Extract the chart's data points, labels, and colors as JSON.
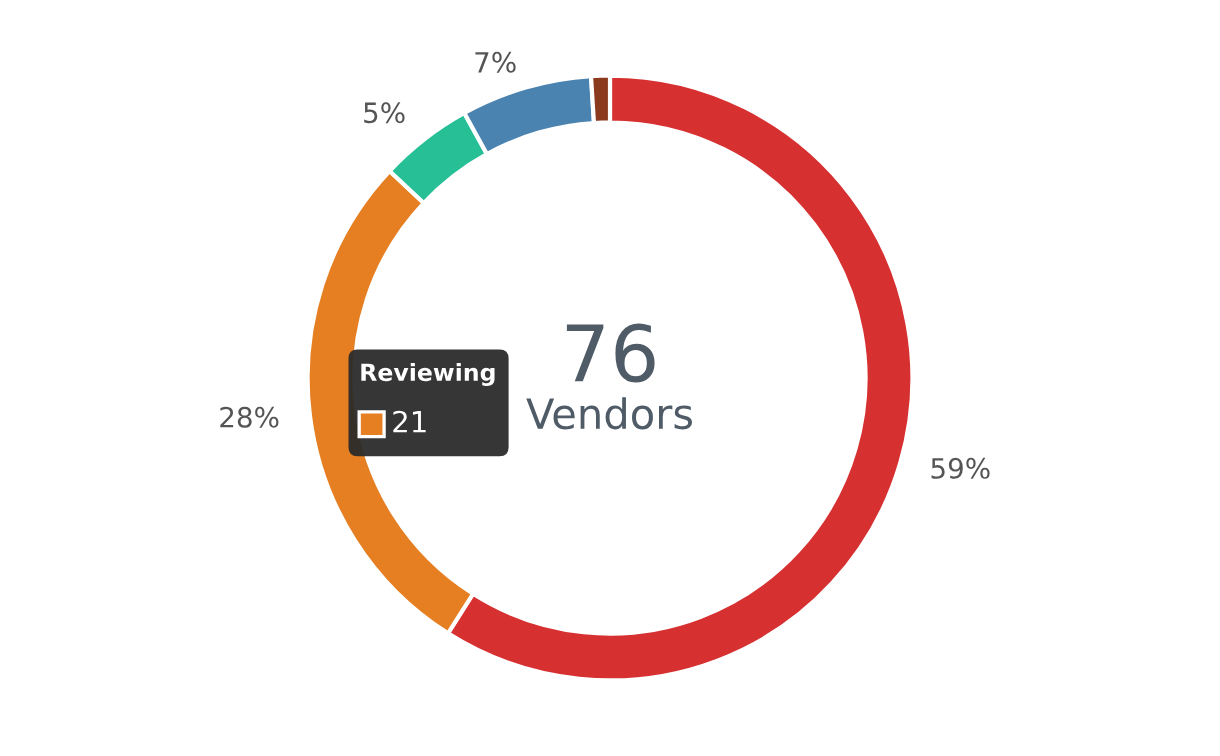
{
  "chart_data": {
    "type": "donut",
    "categories": [
      null,
      "Reviewing",
      null,
      null,
      null
    ],
    "values": [
      59,
      28,
      5,
      7,
      1
    ],
    "colors": [
      "#d63031",
      "#e67e22",
      "#26bf96",
      "#4a83b0",
      "#8b3a1e"
    ],
    "value_labels": [
      "59%",
      "28%",
      "5%",
      "7%",
      null
    ],
    "annotations": [
      "76",
      "Vendors",
      "21"
    ],
    "legend": false
  }
}
